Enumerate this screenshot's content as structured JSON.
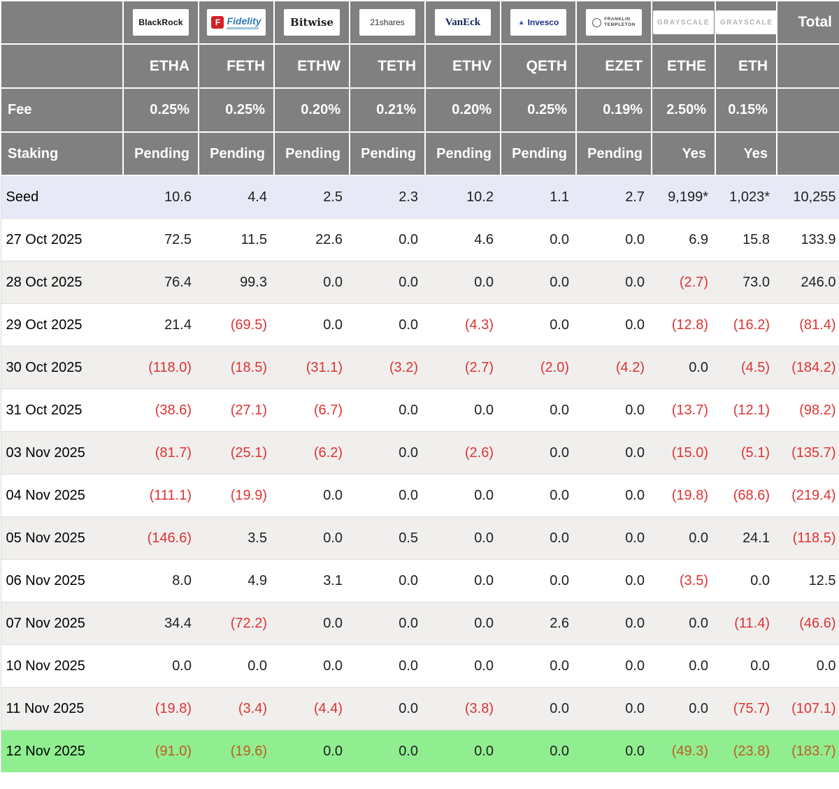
{
  "chart_data": {
    "type": "table",
    "providers": [
      {
        "name": "BlackRock",
        "ticker": "ETHA",
        "fee": "0.25%",
        "staking": "Pending",
        "logo_style": "blackrock"
      },
      {
        "name": "Fidelity",
        "ticker": "FETH",
        "fee": "0.25%",
        "staking": "Pending",
        "logo_style": "fidelity"
      },
      {
        "name": "Bitwise",
        "ticker": "ETHW",
        "fee": "0.20%",
        "staking": "Pending",
        "logo_style": "bitwise"
      },
      {
        "name": "21shares",
        "ticker": "TETH",
        "fee": "0.21%",
        "staking": "Pending",
        "logo_style": "shares21"
      },
      {
        "name": "VanEck",
        "ticker": "ETHV",
        "fee": "0.20%",
        "staking": "Pending",
        "logo_style": "vaneck"
      },
      {
        "name": "Invesco",
        "ticker": "QETH",
        "fee": "0.25%",
        "staking": "Pending",
        "logo_style": "invesco"
      },
      {
        "name": "FRANKLIN TEMPLETON",
        "name_lines": [
          "FRANKLIN",
          "TEMPLETON"
        ],
        "ticker": "EZET",
        "fee": "0.19%",
        "staking": "Pending",
        "logo_style": "franklin"
      },
      {
        "name": "GRAYSCALE",
        "ticker": "ETHE",
        "fee": "2.50%",
        "staking": "Yes",
        "logo_style": "grayscale"
      },
      {
        "name": "GRAYSCALE",
        "ticker": "ETH",
        "fee": "0.15%",
        "staking": "Yes",
        "logo_style": "grayscale"
      }
    ],
    "total_label": "Total",
    "row_header_labels": {
      "fee": "Fee",
      "staking": "Staking"
    },
    "rows": [
      {
        "label": "Seed",
        "bg": "seed",
        "values": [
          "10.6",
          "4.4",
          "2.5",
          "2.3",
          "10.2",
          "1.1",
          "2.7",
          "9,199*",
          "1,023*",
          "10,255"
        ]
      },
      {
        "label": "27 Oct 2025",
        "bg": "white",
        "values": [
          "72.5",
          "11.5",
          "22.6",
          "0.0",
          "4.6",
          "0.0",
          "0.0",
          "6.9",
          "15.8",
          "133.9"
        ]
      },
      {
        "label": "28 Oct 2025",
        "bg": "gray",
        "values": [
          "76.4",
          "99.3",
          "0.0",
          "0.0",
          "0.0",
          "0.0",
          "0.0",
          "(2.7)",
          "73.0",
          "246.0"
        ]
      },
      {
        "label": "29 Oct 2025",
        "bg": "white",
        "values": [
          "21.4",
          "(69.5)",
          "0.0",
          "0.0",
          "(4.3)",
          "0.0",
          "0.0",
          "(12.8)",
          "(16.2)",
          "(81.4)"
        ]
      },
      {
        "label": "30 Oct 2025",
        "bg": "gray",
        "values": [
          "(118.0)",
          "(18.5)",
          "(31.1)",
          "(3.2)",
          "(2.7)",
          "(2.0)",
          "(4.2)",
          "0.0",
          "(4.5)",
          "(184.2)"
        ]
      },
      {
        "label": "31 Oct 2025",
        "bg": "white",
        "values": [
          "(38.6)",
          "(27.1)",
          "(6.7)",
          "0.0",
          "0.0",
          "0.0",
          "0.0",
          "(13.7)",
          "(12.1)",
          "(98.2)"
        ]
      },
      {
        "label": "03 Nov 2025",
        "bg": "gray",
        "values": [
          "(81.7)",
          "(25.1)",
          "(6.2)",
          "0.0",
          "(2.6)",
          "0.0",
          "0.0",
          "(15.0)",
          "(5.1)",
          "(135.7)"
        ]
      },
      {
        "label": "04 Nov 2025",
        "bg": "white",
        "values": [
          "(111.1)",
          "(19.9)",
          "0.0",
          "0.0",
          "0.0",
          "0.0",
          "0.0",
          "(19.8)",
          "(68.6)",
          "(219.4)"
        ]
      },
      {
        "label": "05 Nov 2025",
        "bg": "gray",
        "values": [
          "(146.6)",
          "3.5",
          "0.0",
          "0.5",
          "0.0",
          "0.0",
          "0.0",
          "0.0",
          "24.1",
          "(118.5)"
        ]
      },
      {
        "label": "06 Nov 2025",
        "bg": "white",
        "values": [
          "8.0",
          "4.9",
          "3.1",
          "0.0",
          "0.0",
          "0.0",
          "0.0",
          "(3.5)",
          "0.0",
          "12.5"
        ]
      },
      {
        "label": "07 Nov 2025",
        "bg": "gray",
        "values": [
          "34.4",
          "(72.2)",
          "0.0",
          "0.0",
          "0.0",
          "2.6",
          "0.0",
          "0.0",
          "(11.4)",
          "(46.6)"
        ]
      },
      {
        "label": "10 Nov 2025",
        "bg": "white",
        "values": [
          "0.0",
          "0.0",
          "0.0",
          "0.0",
          "0.0",
          "0.0",
          "0.0",
          "0.0",
          "0.0",
          "0.0"
        ]
      },
      {
        "label": "11 Nov 2025",
        "bg": "gray",
        "values": [
          "(19.8)",
          "(3.4)",
          "(4.4)",
          "0.0",
          "(3.8)",
          "0.0",
          "0.0",
          "0.0",
          "(75.7)",
          "(107.1)"
        ]
      },
      {
        "label": "12 Nov 2025",
        "bg": "green",
        "values": [
          "(91.0)",
          "(19.6)",
          "0.0",
          "0.0",
          "0.0",
          "0.0",
          "0.0",
          "(49.3)",
          "(23.8)",
          "(183.7)"
        ]
      }
    ]
  },
  "icons": {
    "fidelity_f": "F",
    "invesco_mark": "▲"
  },
  "colors": {
    "header_bg": "#808080",
    "header_text": "#ffffff",
    "seed_row_bg": "#e7eaf6",
    "alt_row_bg": "#f0efed",
    "highlight_row_bg": "#90ee90",
    "negative_text": "#dd3333",
    "negative_on_green": "#bf5b21",
    "body_text": "#1f1f1f"
  }
}
